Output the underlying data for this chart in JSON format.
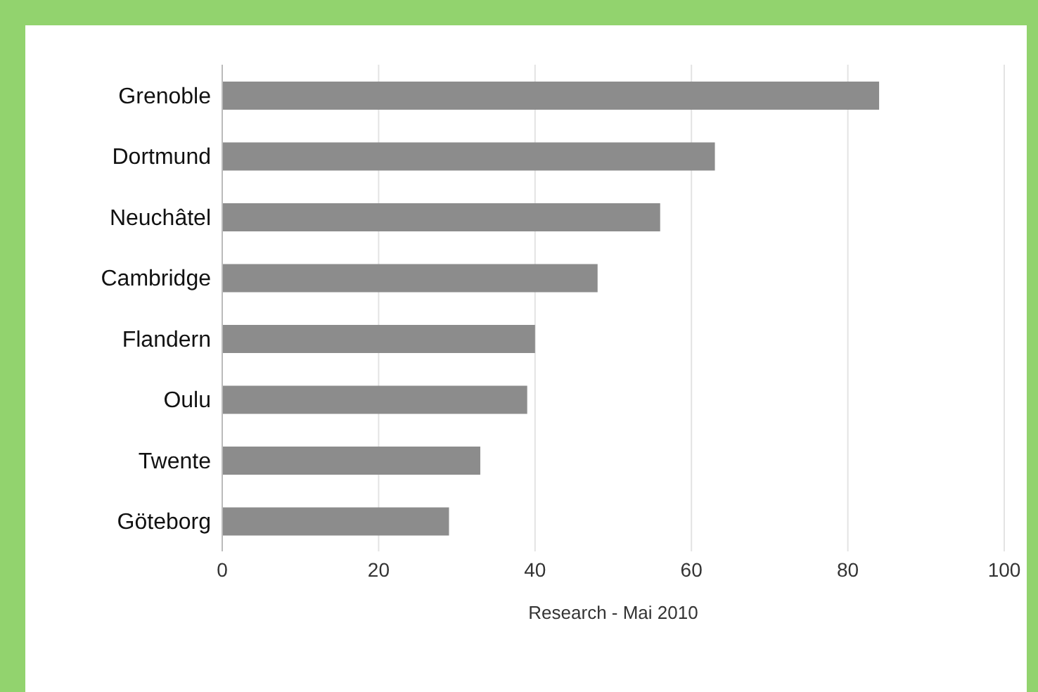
{
  "chart_data": {
    "type": "bar",
    "orientation": "horizontal",
    "categories": [
      "Grenoble",
      "Dortmund",
      "Neuchâtel",
      "Cambridge",
      "Flandern",
      "Oulu",
      "Twente",
      "Göteborg"
    ],
    "values": [
      84,
      63,
      56,
      48,
      40,
      39,
      33,
      29
    ],
    "color": "#8c8c8c",
    "xlim": [
      0,
      100
    ],
    "xticks": [
      0,
      20,
      40,
      60,
      80,
      100
    ],
    "xlabel": "Research - Mai 2010",
    "grid": "x"
  }
}
